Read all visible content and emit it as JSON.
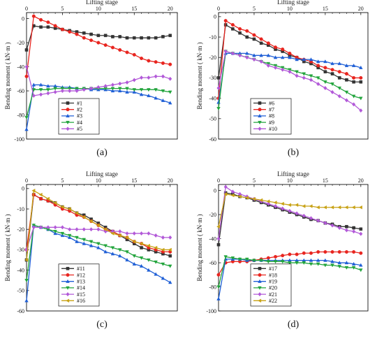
{
  "chart_data": [
    {
      "type": "line",
      "panel_label": "(a)",
      "xlabel": "Lifting stage",
      "ylabel": "Bending moment ( kN·m )",
      "xlim": [
        0,
        21
      ],
      "ylim": [
        -100,
        5
      ],
      "xticks": [
        0,
        5,
        10,
        15,
        20
      ],
      "yticks": [
        0,
        -20,
        -40,
        -60,
        -80,
        -100
      ],
      "legend_position": "bottom-left",
      "x": [
        0,
        1,
        2,
        3,
        4,
        5,
        6,
        7,
        8,
        9,
        10,
        11,
        12,
        13,
        14,
        15,
        16,
        17,
        18,
        19,
        20
      ],
      "series": [
        {
          "name": "#1",
          "color": "#333333",
          "marker": "square",
          "values": [
            -26,
            -6,
            -7,
            -7,
            -8,
            -9,
            -10,
            -11,
            -12,
            -13,
            -14,
            -14,
            -15,
            -15,
            -16,
            -16,
            -16,
            -16,
            -16,
            -15,
            -14
          ]
        },
        {
          "name": "#2",
          "color": "#e8251f",
          "marker": "circle",
          "values": [
            -48,
            2,
            -1,
            -3,
            -6,
            -9,
            -11,
            -13,
            -16,
            -18,
            -20,
            -22,
            -24,
            -26,
            -28,
            -30,
            -33,
            -35,
            -36,
            -37,
            -38
          ]
        },
        {
          "name": "#3",
          "color": "#1f5fd6",
          "marker": "triangle-up",
          "values": [
            -92,
            -55,
            -55,
            -56,
            -56,
            -57,
            -57,
            -58,
            -58,
            -59,
            -59,
            -59,
            -60,
            -60,
            -61,
            -61,
            -63,
            -64,
            -66,
            -68,
            -70
          ]
        },
        {
          "name": "#4",
          "color": "#22a43c",
          "marker": "triangle-down",
          "values": [
            -82,
            -59,
            -59,
            -59,
            -58,
            -58,
            -58,
            -58,
            -58,
            -58,
            -58,
            -58,
            -58,
            -58,
            -58,
            -59,
            -59,
            -59,
            -59,
            -60,
            -61
          ]
        },
        {
          "name": "#5",
          "color": "#b259d8",
          "marker": "diamond",
          "values": [
            -40,
            -64,
            -63,
            -62,
            -61,
            -60,
            -60,
            -60,
            -59,
            -58,
            -57,
            -56,
            -55,
            -54,
            -53,
            -51,
            -49,
            -49,
            -48,
            -48,
            -50
          ]
        }
      ]
    },
    {
      "type": "line",
      "panel_label": "(b)",
      "xlabel": "Lifting stage",
      "ylabel": "Bending moment ( kN·m )",
      "xlim": [
        0,
        21
      ],
      "ylim": [
        -60,
        2
      ],
      "xticks": [
        0,
        5,
        10,
        15,
        20
      ],
      "yticks": [
        0,
        -10,
        -20,
        -30,
        -40,
        -50,
        -60
      ],
      "legend_position": "bottom-left",
      "x": [
        0,
        1,
        2,
        3,
        4,
        5,
        6,
        7,
        8,
        9,
        10,
        11,
        12,
        13,
        14,
        15,
        16,
        17,
        18,
        19,
        20
      ],
      "series": [
        {
          "name": "#6",
          "color": "#333333",
          "marker": "square",
          "values": [
            -30,
            -4,
            -6,
            -8,
            -10,
            -11,
            -13,
            -14,
            -16,
            -17,
            -19,
            -20,
            -22,
            -23,
            -25,
            -27,
            -28,
            -30,
            -31,
            -32,
            -32
          ]
        },
        {
          "name": "#7",
          "color": "#e8251f",
          "marker": "circle",
          "values": [
            -40,
            -2,
            -4,
            -6,
            -7,
            -9,
            -11,
            -13,
            -15,
            -16,
            -18,
            -20,
            -21,
            -22,
            -24,
            -25,
            -26,
            -27,
            -28,
            -30,
            -30
          ]
        },
        {
          "name": "#8",
          "color": "#1f5fd6",
          "marker": "triangle-up",
          "values": [
            -42,
            -18,
            -18,
            -18,
            -18,
            -19,
            -19,
            -19,
            -20,
            -20,
            -20,
            -21,
            -21,
            -21,
            -22,
            -22,
            -23,
            -23,
            -24,
            -24,
            -25
          ]
        },
        {
          "name": "#9",
          "color": "#22a43c",
          "marker": "triangle-down",
          "values": [
            -45,
            -17,
            -18,
            -19,
            -20,
            -21,
            -22,
            -23,
            -24,
            -25,
            -26,
            -27,
            -28,
            -29,
            -30,
            -32,
            -33,
            -35,
            -37,
            -39,
            -40
          ]
        },
        {
          "name": "#10",
          "color": "#b259d8",
          "marker": "diamond",
          "values": [
            -35,
            -17,
            -18,
            -19,
            -20,
            -21,
            -22,
            -24,
            -25,
            -26,
            -27,
            -29,
            -30,
            -31,
            -33,
            -35,
            -37,
            -39,
            -41,
            -43,
            -46
          ]
        }
      ]
    },
    {
      "type": "line",
      "panel_label": "(c)",
      "xlabel": "Lifting stage",
      "ylabel": "Bending moment ( kN·m )",
      "xlim": [
        0,
        21
      ],
      "ylim": [
        -60,
        2
      ],
      "xticks": [
        0,
        5,
        10,
        15,
        20
      ],
      "yticks": [
        0,
        -10,
        -20,
        -30,
        -40,
        -50,
        -60
      ],
      "legend_position": "bottom-left",
      "x": [
        0,
        1,
        2,
        3,
        4,
        5,
        6,
        7,
        8,
        9,
        10,
        11,
        12,
        13,
        14,
        15,
        16,
        17,
        18,
        19,
        20
      ],
      "series": [
        {
          "name": "#11",
          "color": "#333333",
          "marker": "square",
          "values": [
            -35,
            -3,
            -5,
            -6,
            -7,
            -9,
            -10,
            -12,
            -13,
            -15,
            -17,
            -19,
            -21,
            -23,
            -25,
            -27,
            -29,
            -30,
            -31,
            -32,
            -33
          ]
        },
        {
          "name": "#12",
          "color": "#e8251f",
          "marker": "circle",
          "values": [
            -30,
            -3,
            -5,
            -6,
            -8,
            -10,
            -11,
            -13,
            -14,
            -16,
            -18,
            -20,
            -21,
            -23,
            -24,
            -26,
            -27,
            -29,
            -30,
            -31,
            -31
          ]
        },
        {
          "name": "#13",
          "color": "#1f5fd6",
          "marker": "triangle-up",
          "values": [
            -55,
            -18,
            -19,
            -20,
            -22,
            -23,
            -24,
            -26,
            -27,
            -28,
            -29,
            -31,
            -32,
            -33,
            -35,
            -37,
            -38,
            -40,
            -42,
            -44,
            -46
          ]
        },
        {
          "name": "#14",
          "color": "#22a43c",
          "marker": "triangle-down",
          "values": [
            -45,
            -18,
            -19,
            -20,
            -21,
            -22,
            -23,
            -24,
            -25,
            -26,
            -27,
            -28,
            -29,
            -30,
            -31,
            -33,
            -34,
            -35,
            -36,
            -37,
            -38
          ]
        },
        {
          "name": "#15",
          "color": "#b259d8",
          "marker": "diamond",
          "values": [
            -30,
            -19,
            -19,
            -19,
            -19,
            -19,
            -20,
            -20,
            -20,
            -20,
            -20,
            -21,
            -21,
            -21,
            -22,
            -22,
            -22,
            -22,
            -23,
            -24,
            -24
          ]
        },
        {
          "name": "#16",
          "color": "#c8a216",
          "marker": "triangle-left",
          "values": [
            -35,
            -1,
            -3,
            -5,
            -7,
            -9,
            -10,
            -12,
            -14,
            -16,
            -18,
            -20,
            -22,
            -23,
            -24,
            -26,
            -27,
            -28,
            -29,
            -30,
            -30
          ]
        }
      ]
    },
    {
      "type": "line",
      "panel_label": "(d)",
      "xlabel": "Lifting stage",
      "ylabel": "Bending moment ( kN·m )",
      "xlim": [
        0,
        21
      ],
      "ylim": [
        -100,
        5
      ],
      "xticks": [
        0,
        5,
        10,
        15,
        20
      ],
      "yticks": [
        0,
        -20,
        -40,
        -60,
        -80,
        -100
      ],
      "legend_position": "bottom-left",
      "x": [
        0,
        1,
        2,
        3,
        4,
        5,
        6,
        7,
        8,
        9,
        10,
        11,
        12,
        13,
        14,
        15,
        16,
        17,
        18,
        19,
        20
      ],
      "series": [
        {
          "name": "#17",
          "color": "#333333",
          "marker": "square",
          "values": [
            -45,
            -2,
            -3,
            -5,
            -6,
            -8,
            -10,
            -12,
            -14,
            -16,
            -18,
            -20,
            -22,
            -24,
            -25,
            -27,
            -28,
            -30,
            -30,
            -31,
            -32
          ]
        },
        {
          "name": "#18",
          "color": "#e8251f",
          "marker": "circle",
          "values": [
            -70,
            -60,
            -59,
            -59,
            -59,
            -58,
            -57,
            -56,
            -55,
            -54,
            -53,
            -53,
            -52,
            -52,
            -51,
            -51,
            -51,
            -51,
            -51,
            -51,
            -52
          ]
        },
        {
          "name": "#19",
          "color": "#1f5fd6",
          "marker": "triangle-up",
          "values": [
            -90,
            -57,
            -57,
            -57,
            -58,
            -58,
            -58,
            -58,
            -58,
            -58,
            -58,
            -58,
            -58,
            -58,
            -58,
            -58,
            -59,
            -60,
            -60,
            -61,
            -62
          ]
        },
        {
          "name": "#20",
          "color": "#22a43c",
          "marker": "triangle-down",
          "values": [
            -80,
            -55,
            -56,
            -57,
            -57,
            -58,
            -58,
            -59,
            -59,
            -59,
            -60,
            -60,
            -60,
            -61,
            -61,
            -62,
            -62,
            -63,
            -64,
            -64,
            -66
          ]
        },
        {
          "name": "#21",
          "color": "#b259d8",
          "marker": "diamond",
          "values": [
            -40,
            3,
            -1,
            -3,
            -5,
            -7,
            -9,
            -11,
            -13,
            -15,
            -17,
            -19,
            -21,
            -23,
            -25,
            -27,
            -29,
            -31,
            -33,
            -34,
            -36
          ]
        },
        {
          "name": "#22",
          "color": "#c8a216",
          "marker": "triangle-left",
          "values": [
            -30,
            -3,
            -4,
            -5,
            -6,
            -7,
            -8,
            -9,
            -10,
            -11,
            -12,
            -12,
            -13,
            -13,
            -14,
            -14,
            -14,
            -14,
            -14,
            -14,
            -14
          ]
        }
      ]
    }
  ]
}
